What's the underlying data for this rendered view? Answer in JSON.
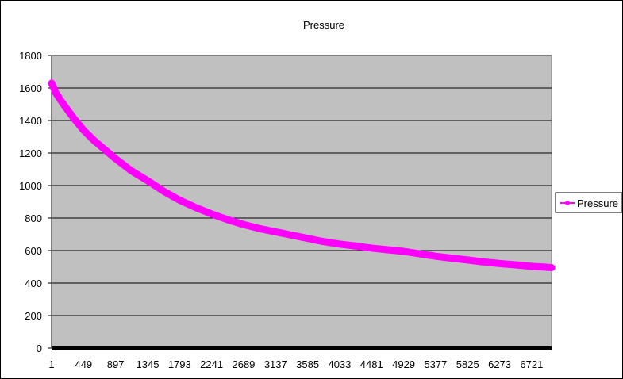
{
  "chart_data": {
    "type": "line",
    "title": "Pressure",
    "xlabel": "",
    "ylabel": "",
    "ylim": [
      0,
      1800
    ],
    "y_ticks": [
      0,
      200,
      400,
      600,
      800,
      1000,
      1200,
      1400,
      1600,
      1800
    ],
    "x_tick_labels": [
      "1",
      "449",
      "897",
      "1345",
      "1793",
      "2241",
      "2689",
      "3137",
      "3585",
      "4033",
      "4481",
      "4929",
      "5377",
      "5825",
      "6273",
      "6721"
    ],
    "xlim": [
      1,
      7000
    ],
    "grid": true,
    "legend_position": "right",
    "plot_background": "#c0c0c0",
    "series": [
      {
        "name": "Pressure",
        "color": "#ff00ff",
        "marker": "square",
        "x": [
          1,
          60,
          150,
          300,
          449,
          600,
          897,
          1120,
          1345,
          1570,
          1793,
          2017,
          2241,
          2465,
          2689,
          2913,
          3137,
          3361,
          3585,
          3809,
          4033,
          4257,
          4481,
          4705,
          4929,
          5153,
          5377,
          5601,
          5825,
          6049,
          6273,
          6497,
          6721,
          6900,
          7000
        ],
        "y": [
          1630,
          1570,
          1510,
          1420,
          1340,
          1275,
          1165,
          1090,
          1030,
          965,
          910,
          865,
          825,
          790,
          760,
          735,
          715,
          695,
          675,
          655,
          640,
          628,
          615,
          605,
          595,
          580,
          565,
          553,
          542,
          530,
          520,
          512,
          503,
          498,
          495
        ]
      }
    ]
  }
}
